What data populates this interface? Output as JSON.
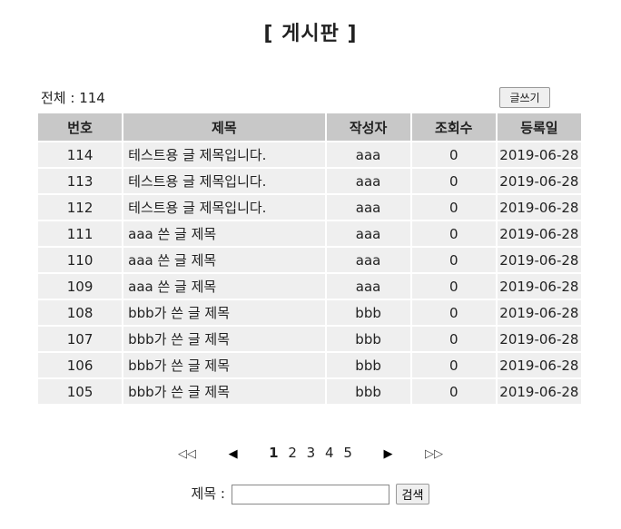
{
  "page": {
    "title": "[ 게시판 ]"
  },
  "summary": {
    "total_label": "전체 : 114"
  },
  "toolbar": {
    "write_label": "글쓰기"
  },
  "table": {
    "headers": [
      "번호",
      "제목",
      "작성자",
      "조회수",
      "등록일"
    ],
    "rows": [
      {
        "num": "114",
        "subject": "테스트용 글 제목입니다.",
        "writer": "aaa",
        "views": "0",
        "date": "2019-06-28"
      },
      {
        "num": "113",
        "subject": "테스트용 글 제목입니다.",
        "writer": "aaa",
        "views": "0",
        "date": "2019-06-28"
      },
      {
        "num": "112",
        "subject": "테스트용 글 제목입니다.",
        "writer": "aaa",
        "views": "0",
        "date": "2019-06-28"
      },
      {
        "num": "111",
        "subject": "aaa 쓴 글 제목",
        "writer": "aaa",
        "views": "0",
        "date": "2019-06-28"
      },
      {
        "num": "110",
        "subject": "aaa 쓴 글 제목",
        "writer": "aaa",
        "views": "0",
        "date": "2019-06-28"
      },
      {
        "num": "109",
        "subject": "aaa 쓴 글 제목",
        "writer": "aaa",
        "views": "0",
        "date": "2019-06-28"
      },
      {
        "num": "108",
        "subject": "bbb가 쓴 글 제목",
        "writer": "bbb",
        "views": "0",
        "date": "2019-06-28"
      },
      {
        "num": "107",
        "subject": "bbb가 쓴 글 제목",
        "writer": "bbb",
        "views": "0",
        "date": "2019-06-28"
      },
      {
        "num": "106",
        "subject": "bbb가 쓴 글 제목",
        "writer": "bbb",
        "views": "0",
        "date": "2019-06-28"
      },
      {
        "num": "105",
        "subject": "bbb가 쓴 글 제목",
        "writer": "bbb",
        "views": "0",
        "date": "2019-06-28"
      }
    ]
  },
  "pagination": {
    "first": "◁◁",
    "prev": "◀",
    "pages": [
      "1",
      "2",
      "3",
      "4",
      "5"
    ],
    "current": "1",
    "next": "▶",
    "last": "▷▷"
  },
  "search": {
    "label": "제목 :",
    "value": "",
    "button_label": "검색"
  }
}
